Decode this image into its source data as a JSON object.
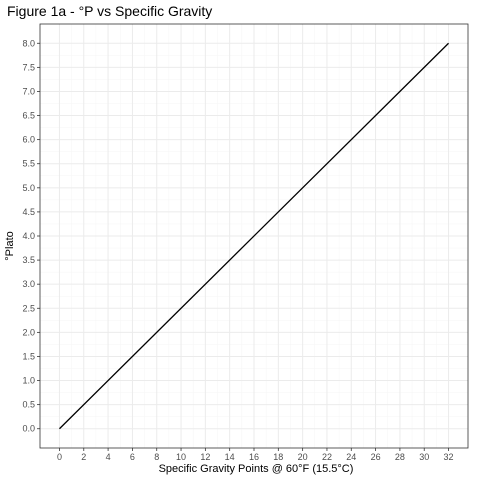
{
  "chart_data": {
    "type": "line",
    "title": "Figure 1a - °P vs Specific Gravity",
    "xlabel": "Specific Gravity Points @ 60°F (15.5°C)",
    "ylabel": "°Plato",
    "x_ticks": [
      "0",
      "2",
      "4",
      "6",
      "8",
      "10",
      "12",
      "14",
      "16",
      "18",
      "20",
      "22",
      "24",
      "26",
      "28",
      "30",
      "32"
    ],
    "y_ticks": [
      "0.0",
      "0.5",
      "1.0",
      "1.5",
      "2.0",
      "2.5",
      "3.0",
      "3.5",
      "4.0",
      "4.5",
      "5.0",
      "5.5",
      "6.0",
      "6.5",
      "7.0",
      "7.5",
      "8.0"
    ],
    "xlim": [
      -1.6,
      33.6
    ],
    "ylim": [
      -0.4,
      8.4
    ],
    "grid": true,
    "series": [
      {
        "x": [
          0,
          32
        ],
        "y": [
          0,
          8
        ],
        "color": "#000000"
      }
    ]
  }
}
